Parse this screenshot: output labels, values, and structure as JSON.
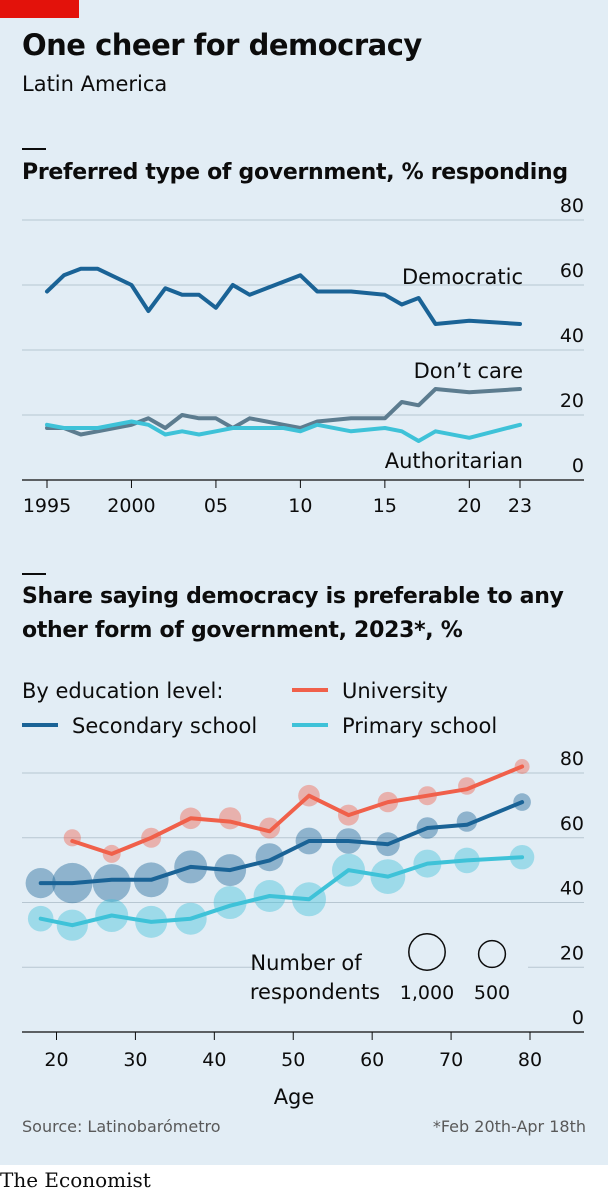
{
  "header": {
    "title": "One cheer for democracy",
    "subtitle": "Latin America"
  },
  "colors": {
    "background": "#e2edf5",
    "democratic": "#1a6396",
    "dont_care": "#5c7c8f",
    "authoritarian": "#3ec2d8",
    "university": "#f0604a",
    "secondary": "#1a6396",
    "primary": "#3ec2d8",
    "brand_red": "#e3120b"
  },
  "footer": {
    "source": "Source: Latinobarómetro",
    "footnote": "*Feb 20th-Apr 18th",
    "brand": "The Economist"
  },
  "chart_data": [
    {
      "type": "line",
      "title": "Preferred type of government, % responding",
      "x_tick_labels": [
        "1995",
        "2000",
        "05",
        "10",
        "15",
        "20",
        "23"
      ],
      "x_tick_values": [
        1995,
        2000,
        2005,
        2010,
        2015,
        2020,
        2023
      ],
      "y_tick_labels": [
        "0",
        "20",
        "40",
        "60",
        "80"
      ],
      "y_tick_values": [
        0,
        20,
        40,
        60,
        80
      ],
      "xlim": [
        1995,
        2023
      ],
      "ylim": [
        0,
        80
      ],
      "grid": true,
      "series": [
        {
          "name": "Democratic",
          "color_key": "democratic",
          "points": [
            [
              1995,
              58
            ],
            [
              1996,
              63
            ],
            [
              1997,
              65
            ],
            [
              1998,
              65
            ],
            [
              2000,
              60
            ],
            [
              2001,
              52
            ],
            [
              2002,
              59
            ],
            [
              2003,
              57
            ],
            [
              2004,
              57
            ],
            [
              2005,
              53
            ],
            [
              2006,
              60
            ],
            [
              2007,
              57
            ],
            [
              2008,
              59
            ],
            [
              2009,
              61
            ],
            [
              2010,
              63
            ],
            [
              2011,
              58
            ],
            [
              2013,
              58
            ],
            [
              2015,
              57
            ],
            [
              2016,
              54
            ],
            [
              2017,
              56
            ],
            [
              2018,
              48
            ],
            [
              2020,
              49
            ],
            [
              2023,
              48
            ]
          ]
        },
        {
          "name": "Don’t care",
          "color_key": "dont_care",
          "points": [
            [
              1995,
              16
            ],
            [
              1996,
              16
            ],
            [
              1997,
              14
            ],
            [
              1998,
              15
            ],
            [
              2000,
              17
            ],
            [
              2001,
              19
            ],
            [
              2002,
              16
            ],
            [
              2003,
              20
            ],
            [
              2004,
              19
            ],
            [
              2005,
              19
            ],
            [
              2006,
              16
            ],
            [
              2007,
              19
            ],
            [
              2008,
              18
            ],
            [
              2009,
              17
            ],
            [
              2010,
              16
            ],
            [
              2011,
              18
            ],
            [
              2013,
              19
            ],
            [
              2015,
              19
            ],
            [
              2016,
              24
            ],
            [
              2017,
              23
            ],
            [
              2018,
              28
            ],
            [
              2020,
              27
            ],
            [
              2023,
              28
            ]
          ]
        },
        {
          "name": "Authoritarian",
          "color_key": "authoritarian",
          "points": [
            [
              1995,
              17
            ],
            [
              1996,
              16
            ],
            [
              1997,
              16
            ],
            [
              1998,
              16
            ],
            [
              2000,
              18
            ],
            [
              2001,
              17
            ],
            [
              2002,
              14
            ],
            [
              2003,
              15
            ],
            [
              2004,
              14
            ],
            [
              2005,
              15
            ],
            [
              2006,
              16
            ],
            [
              2007,
              16
            ],
            [
              2008,
              16
            ],
            [
              2009,
              16
            ],
            [
              2010,
              15
            ],
            [
              2011,
              17
            ],
            [
              2013,
              15
            ],
            [
              2015,
              16
            ],
            [
              2016,
              15
            ],
            [
              2017,
              12
            ],
            [
              2018,
              15
            ],
            [
              2020,
              13
            ],
            [
              2023,
              17
            ]
          ]
        }
      ]
    },
    {
      "type": "scatter",
      "title": "Share saying democracy is preferable to any other form of government, 2023*, %",
      "legend_heading": "By education level:",
      "xlabel": "Age",
      "x_tick_labels": [
        "20",
        "30",
        "40",
        "50",
        "60",
        "70",
        "80"
      ],
      "x_tick_values": [
        20,
        30,
        40,
        50,
        60,
        70,
        80
      ],
      "y_tick_labels": [
        "0",
        "20",
        "40",
        "60",
        "80"
      ],
      "y_tick_values": [
        0,
        20,
        40,
        60,
        80
      ],
      "xlim": [
        16,
        83
      ],
      "ylim": [
        0,
        80
      ],
      "grid": true,
      "size_legend": {
        "title_line1": "Number of",
        "title_line2": "respondents",
        "entries": [
          {
            "label": "1,000",
            "value": 1000
          },
          {
            "label": "500",
            "value": 500
          }
        ]
      },
      "series": [
        {
          "name": "University",
          "color_key": "university",
          "line": [
            [
              22,
              59
            ],
            [
              27,
              55
            ],
            [
              32,
              60
            ],
            [
              37,
              66
            ],
            [
              42,
              65
            ],
            [
              47,
              62
            ],
            [
              52,
              73
            ],
            [
              57,
              67
            ],
            [
              62,
              71
            ],
            [
              67,
              73
            ],
            [
              72,
              75
            ],
            [
              79,
              82
            ]
          ],
          "bubbles": [
            [
              22,
              60,
              170
            ],
            [
              27,
              55,
              190
            ],
            [
              32,
              60,
              250
            ],
            [
              37,
              66,
              300
            ],
            [
              42,
              66,
              320
            ],
            [
              47,
              63,
              280
            ],
            [
              52,
              73,
              300
            ],
            [
              57,
              67,
              280
            ],
            [
              62,
              71,
              260
            ],
            [
              67,
              73,
              220
            ],
            [
              72,
              76,
              180
            ],
            [
              79,
              82,
              120
            ]
          ]
        },
        {
          "name": "Secondary school",
          "color_key": "secondary",
          "line": [
            [
              18,
              46
            ],
            [
              22,
              46
            ],
            [
              27,
              47
            ],
            [
              32,
              47
            ],
            [
              37,
              51
            ],
            [
              42,
              50
            ],
            [
              47,
              53
            ],
            [
              52,
              59
            ],
            [
              57,
              59
            ],
            [
              62,
              58
            ],
            [
              67,
              63
            ],
            [
              72,
              64
            ],
            [
              79,
              71
            ]
          ],
          "bubbles": [
            [
              18,
              46,
              650
            ],
            [
              22,
              46,
              1250
            ],
            [
              27,
              46,
              1100
            ],
            [
              32,
              47,
              900
            ],
            [
              37,
              51,
              800
            ],
            [
              42,
              50,
              750
            ],
            [
              47,
              54,
              550
            ],
            [
              52,
              59,
              500
            ],
            [
              57,
              59,
              450
            ],
            [
              62,
              58,
              380
            ],
            [
              67,
              63,
              300
            ],
            [
              72,
              65,
              260
            ],
            [
              79,
              71,
              180
            ]
          ]
        },
        {
          "name": "Primary school",
          "color_key": "primary",
          "line": [
            [
              18,
              35
            ],
            [
              22,
              33
            ],
            [
              27,
              36
            ],
            [
              32,
              34
            ],
            [
              37,
              35
            ],
            [
              42,
              39
            ],
            [
              47,
              42
            ],
            [
              52,
              41
            ],
            [
              57,
              50
            ],
            [
              62,
              48
            ],
            [
              67,
              52
            ],
            [
              72,
              53
            ],
            [
              79,
              54
            ]
          ],
          "bubbles": [
            [
              18,
              35,
              450
            ],
            [
              22,
              33,
              700
            ],
            [
              27,
              36,
              800
            ],
            [
              32,
              34,
              750
            ],
            [
              37,
              35,
              750
            ],
            [
              42,
              40,
              800
            ],
            [
              47,
              42,
              750
            ],
            [
              52,
              41,
              850
            ],
            [
              57,
              50,
              800
            ],
            [
              62,
              48,
              900
            ],
            [
              67,
              52,
              550
            ],
            [
              72,
              53,
              450
            ],
            [
              79,
              54,
              400
            ]
          ]
        }
      ]
    }
  ]
}
